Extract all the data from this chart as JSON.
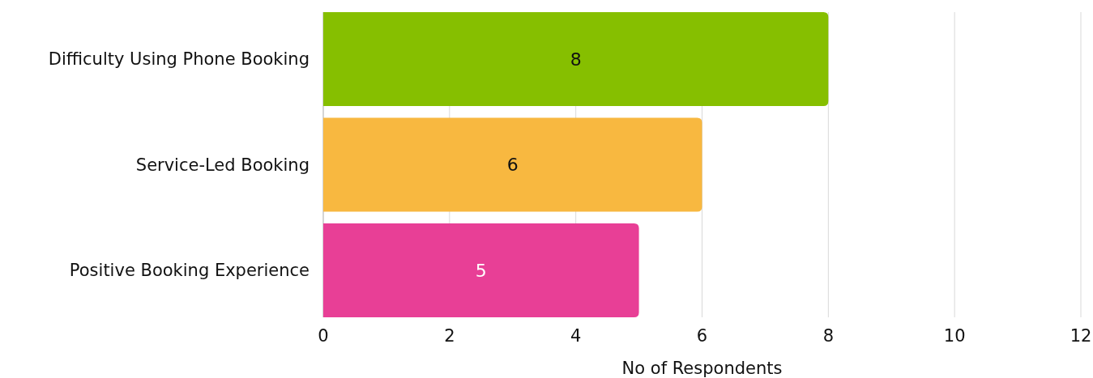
{
  "chart_data": {
    "type": "bar",
    "orientation": "horizontal",
    "categories": [
      "Difficulty Using Phone Booking",
      "Service-Led Booking",
      "Positive Booking Experience"
    ],
    "values": [
      8,
      6,
      5
    ],
    "colors": [
      "#86bf00",
      "#f8b840",
      "#e83f96"
    ],
    "xlim": [
      0,
      12
    ],
    "xticks": [
      0,
      2,
      4,
      6,
      8,
      10,
      12
    ],
    "xlabel": "No of Respondents",
    "grid": "x",
    "data_labels": true
  }
}
